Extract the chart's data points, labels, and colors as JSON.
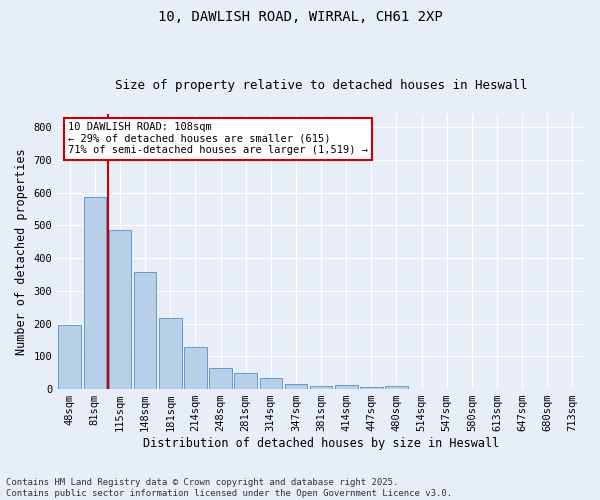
{
  "title_line1": "10, DAWLISH ROAD, WIRRAL, CH61 2XP",
  "title_line2": "Size of property relative to detached houses in Heswall",
  "xlabel": "Distribution of detached houses by size in Heswall",
  "ylabel": "Number of detached properties",
  "bar_labels": [
    "48sqm",
    "81sqm",
    "115sqm",
    "148sqm",
    "181sqm",
    "214sqm",
    "248sqm",
    "281sqm",
    "314sqm",
    "347sqm",
    "381sqm",
    "414sqm",
    "447sqm",
    "480sqm",
    "514sqm",
    "547sqm",
    "580sqm",
    "613sqm",
    "647sqm",
    "680sqm",
    "713sqm"
  ],
  "bar_values": [
    197,
    588,
    487,
    358,
    217,
    130,
    65,
    50,
    35,
    17,
    8,
    12,
    5,
    10,
    0,
    0,
    0,
    0,
    0,
    0,
    0
  ],
  "bar_color": "#b8cfe8",
  "bar_edge_color": "#6699cc",
  "background_color": "#e8eef8",
  "grid_color": "#ffffff",
  "marker_line_color": "#cc0000",
  "marker_bin_index": 2,
  "annotation_text": "10 DAWLISH ROAD: 108sqm\n← 29% of detached houses are smaller (615)\n71% of semi-detached houses are larger (1,519) →",
  "annotation_box_color": "#ffffff",
  "annotation_box_edge_color": "#cc0000",
  "ylim": [
    0,
    840
  ],
  "yticks": [
    0,
    100,
    200,
    300,
    400,
    500,
    600,
    700,
    800
  ],
  "footer_text": "Contains HM Land Registry data © Crown copyright and database right 2025.\nContains public sector information licensed under the Open Government Licence v3.0.",
  "title_fontsize": 10,
  "subtitle_fontsize": 9,
  "axis_label_fontsize": 8.5,
  "tick_fontsize": 7.5,
  "annotation_fontsize": 7.5,
  "footer_fontsize": 6.5
}
